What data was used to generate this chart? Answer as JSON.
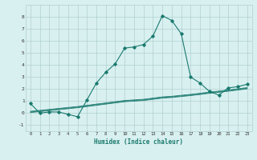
{
  "x": [
    0,
    1,
    2,
    3,
    4,
    5,
    6,
    7,
    8,
    9,
    10,
    11,
    12,
    13,
    14,
    15,
    16,
    17,
    18,
    19,
    20,
    21,
    22,
    23
  ],
  "humidex_line": [
    0.8,
    0.0,
    0.1,
    0.1,
    -0.1,
    -0.3,
    1.1,
    2.5,
    3.4,
    4.1,
    5.4,
    5.5,
    5.7,
    6.4,
    8.1,
    7.7,
    6.6,
    3.0,
    2.5,
    1.8,
    1.5,
    2.1,
    2.2,
    2.4
  ],
  "trend_line1": [
    0.05,
    0.13,
    0.21,
    0.29,
    0.37,
    0.45,
    0.55,
    0.65,
    0.75,
    0.85,
    0.95,
    1.0,
    1.05,
    1.15,
    1.25,
    1.3,
    1.38,
    1.46,
    1.55,
    1.65,
    1.73,
    1.82,
    1.92,
    2.02
  ],
  "trend_line2": [
    0.1,
    0.18,
    0.26,
    0.34,
    0.42,
    0.5,
    0.6,
    0.7,
    0.8,
    0.9,
    1.0,
    1.05,
    1.1,
    1.2,
    1.3,
    1.35,
    1.43,
    1.51,
    1.6,
    1.7,
    1.78,
    1.87,
    1.97,
    2.07
  ],
  "trend_line3": [
    0.15,
    0.23,
    0.31,
    0.39,
    0.47,
    0.55,
    0.65,
    0.75,
    0.85,
    0.95,
    1.05,
    1.1,
    1.15,
    1.25,
    1.35,
    1.4,
    1.48,
    1.56,
    1.65,
    1.75,
    1.83,
    1.92,
    2.02,
    2.12
  ],
  "line_color": "#1a7a6e",
  "bg_color": "#d9f0f0",
  "grid_color": "#b0d0d0",
  "xlabel": "Humidex (Indice chaleur)",
  "ylim": [
    -1.5,
    9.0
  ],
  "xlim": [
    -0.5,
    23.5
  ],
  "yticks": [
    -1,
    0,
    1,
    2,
    3,
    4,
    5,
    6,
    7,
    8
  ],
  "xticks": [
    0,
    1,
    2,
    3,
    4,
    5,
    6,
    7,
    8,
    9,
    10,
    11,
    12,
    13,
    14,
    15,
    16,
    17,
    18,
    19,
    20,
    21,
    22,
    23
  ]
}
